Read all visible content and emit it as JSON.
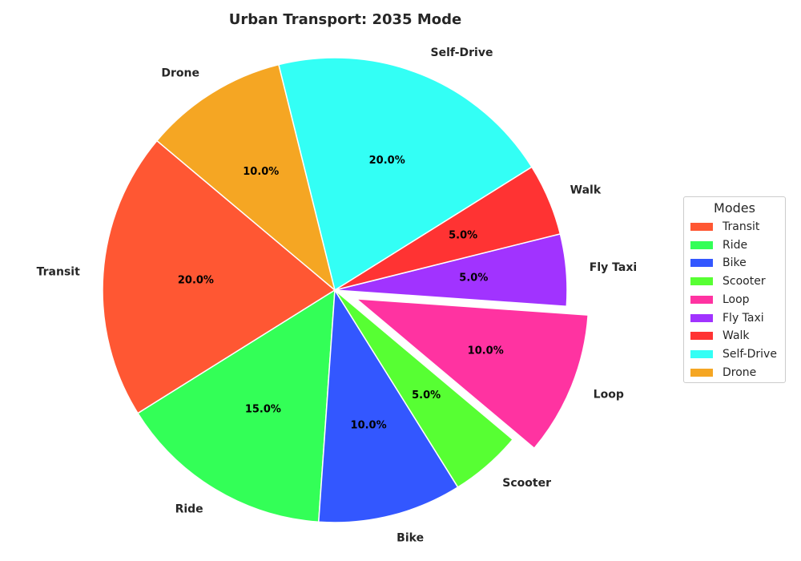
{
  "chart_data": {
    "type": "pie",
    "title": "Urban Transport: 2035 Mode",
    "slices": [
      {
        "label": "Transit",
        "value": 20.0,
        "pct_label": "20.0%",
        "color": "#ff5733",
        "exploded": false
      },
      {
        "label": "Ride",
        "value": 15.0,
        "pct_label": "15.0%",
        "color": "#33ff57",
        "exploded": false
      },
      {
        "label": "Bike",
        "value": 10.0,
        "pct_label": "10.0%",
        "color": "#3357ff",
        "exploded": false
      },
      {
        "label": "Scooter",
        "value": 5.0,
        "pct_label": "5.0%",
        "color": "#57ff33",
        "exploded": false
      },
      {
        "label": "Loop",
        "value": 10.0,
        "pct_label": "10.0%",
        "color": "#ff33a1",
        "exploded": true
      },
      {
        "label": "Fly Taxi",
        "value": 5.0,
        "pct_label": "5.0%",
        "color": "#a133ff",
        "exploded": false
      },
      {
        "label": "Walk",
        "value": 5.0,
        "pct_label": "5.0%",
        "color": "#ff3333",
        "exploded": false
      },
      {
        "label": "Self-Drive",
        "value": 20.0,
        "pct_label": "20.0%",
        "color": "#33fff5",
        "exploded": false
      },
      {
        "label": "Drone",
        "value": 10.0,
        "pct_label": "10.0%",
        "color": "#f5a623",
        "exploded": false
      }
    ],
    "legend": {
      "title": "Modes",
      "placement": "right"
    }
  }
}
